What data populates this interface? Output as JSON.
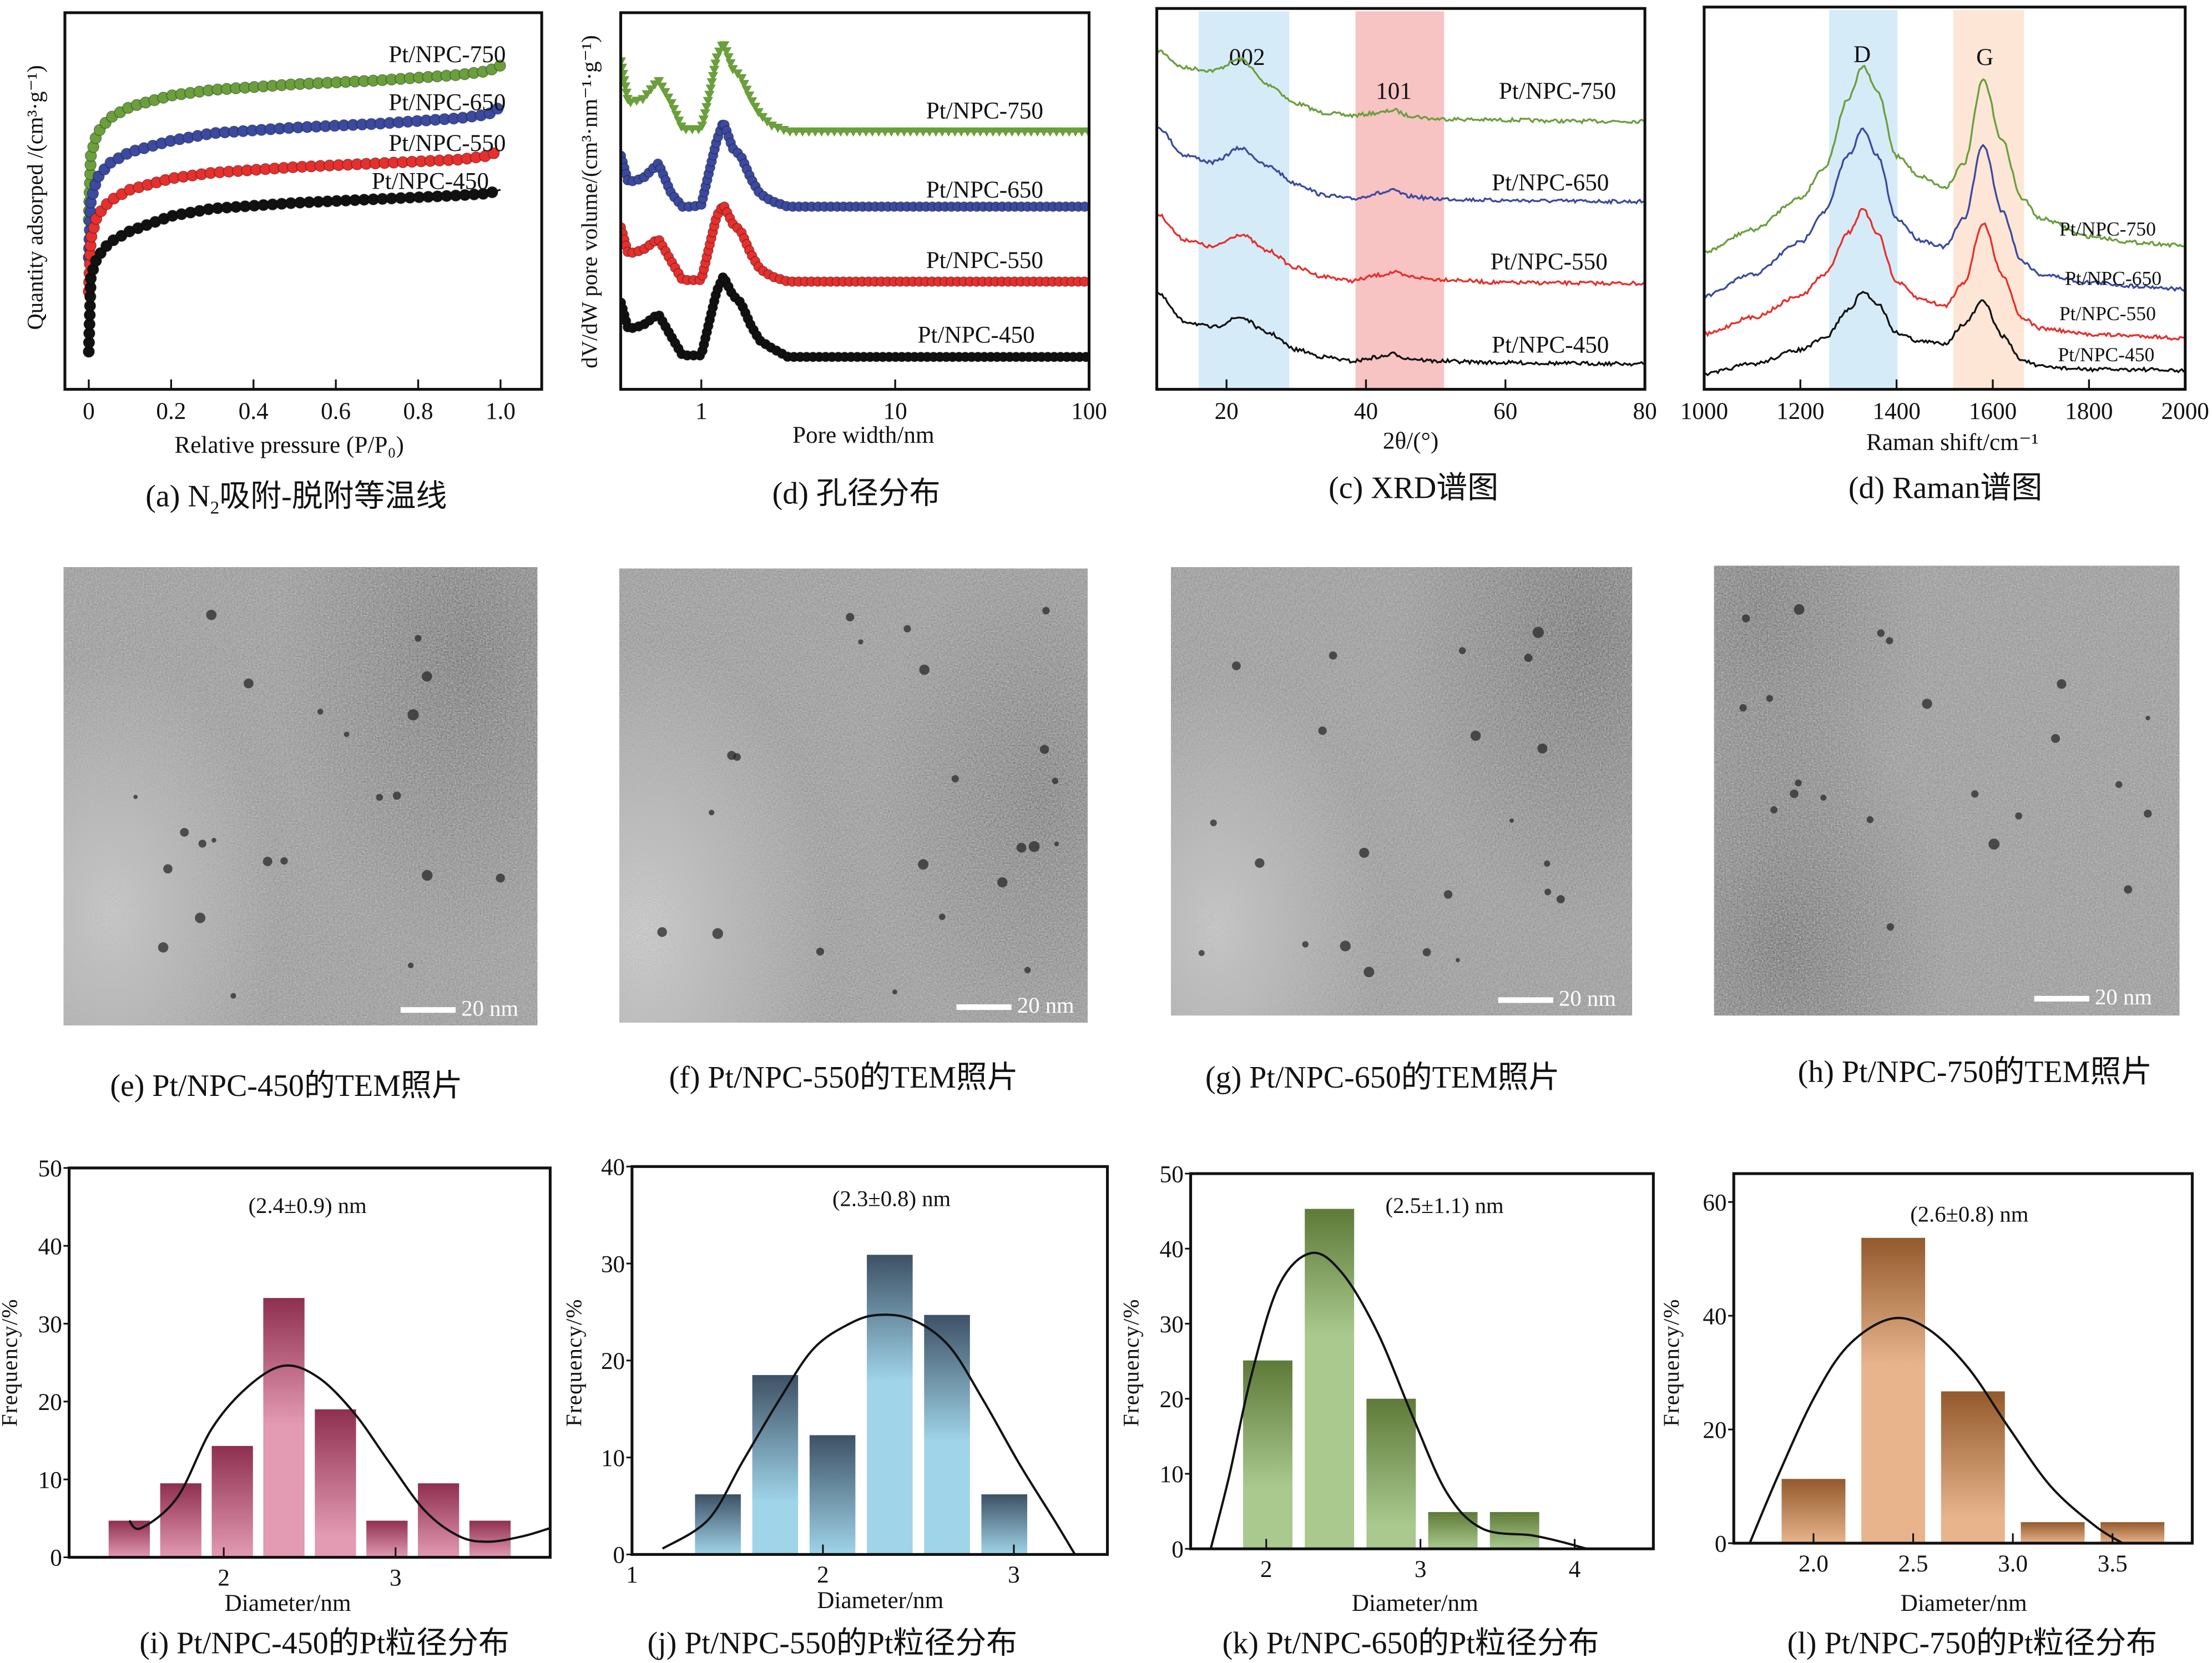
{
  "chart_data": [
    {
      "id": "a",
      "type": "line",
      "caption_pre": "(a) N",
      "caption_sub": "2",
      "caption_post": "吸附-脱附等温线",
      "xlabel": "Relative pressure (P/P₀)",
      "ylabel": "Quantity adsorped /(cm³·g⁻¹)",
      "xlim": [
        -0.058,
        1.1
      ],
      "ylim": [
        0,
        100
      ],
      "log_x": false,
      "xticks": [
        0,
        0.2,
        0.4,
        0.6,
        0.8,
        1.0
      ],
      "xtick_labels": [
        "0",
        "0.2",
        "0.4",
        "0.6",
        "0.8",
        "1.0"
      ],
      "x": [
        0,
        0.005,
        0.02,
        0.05,
        0.1,
        0.2,
        0.3,
        0.5,
        0.7,
        0.9,
        0.97,
        1.0
      ],
      "series": [
        {
          "name": "Pt/NPC-750",
          "color": "#6a9f3c",
          "marker": "circle",
          "y": [
            45,
            62,
            68,
            72,
            75,
            78,
            79.5,
            81,
            82,
            83.5,
            84.5,
            86
          ]
        },
        {
          "name": "Pt/NPC-650",
          "color": "#3b4a9e",
          "marker": "circle",
          "y": [
            35,
            50,
            56,
            60,
            63,
            66,
            68,
            69.5,
            70.5,
            72,
            73,
            75
          ]
        },
        {
          "name": "Pt/NPC-550",
          "color": "#e5302e",
          "marker": "circle",
          "y": [
            26,
            40,
            46,
            50,
            53,
            56,
            57.5,
            59,
            60,
            61,
            62,
            63.5
          ]
        },
        {
          "name": "Pt/NPC-450",
          "color": "#111111",
          "marker": "circle",
          "y": [
            10,
            30,
            35,
            39,
            42,
            46,
            48,
            49.5,
            50.5,
            51.5,
            52,
            53
          ]
        }
      ]
    },
    {
      "id": "b",
      "type": "line",
      "caption": "(d) 孔径分布",
      "xlabel": "Pore width/nm",
      "ylabel": "dV/dW pore volume/(cm³·nm⁻¹·g⁻¹)",
      "xlim": [
        0.384,
        100
      ],
      "ylim": [
        0,
        100
      ],
      "log_x": true,
      "xticks": [
        1,
        10,
        100
      ],
      "xtick_labels": [
        "1",
        "10",
        "100"
      ],
      "x": [
        0.385,
        0.42,
        0.5,
        0.6,
        0.7,
        0.8,
        0.9,
        1.0,
        1.1,
        1.2,
        1.3,
        1.45,
        1.6,
        1.8,
        2.0,
        2.3,
        2.8,
        3.5,
        5,
        10,
        100
      ],
      "series": [
        {
          "name": "Pt/NPC-750",
          "color": "#6a9f3c",
          "marker": "triangle-down",
          "y": [
            87,
            76,
            77,
            82,
            76,
            69,
            69,
            69,
            78,
            88,
            92,
            85,
            83,
            77,
            73,
            70,
            68.4,
            68.4,
            68.4,
            68.4,
            68.4
          ]
        },
        {
          "name": "Pt/NPC-650",
          "color": "#3b4a9e",
          "marker": "pentagon",
          "y": [
            62,
            55,
            56,
            60,
            52,
            48.5,
            48.5,
            49,
            58,
            66,
            71,
            64,
            62,
            56,
            52,
            50,
            48.5,
            48.5,
            48.5,
            48.5,
            48.5
          ]
        },
        {
          "name": "Pt/NPC-550",
          "color": "#e5302e",
          "marker": "circle",
          "y": [
            43,
            36,
            37,
            40,
            34,
            29,
            29,
            29,
            38,
            46,
            49,
            44,
            42,
            36,
            32,
            30,
            28.6,
            28.6,
            28.6,
            28.6,
            28.6
          ]
        },
        {
          "name": "Pt/NPC-450",
          "color": "#111111",
          "marker": "hexagon",
          "y": [
            23,
            16,
            17,
            20,
            14,
            9,
            9,
            9,
            18,
            26,
            30,
            25,
            23,
            17,
            13,
            11,
            8.6,
            8.6,
            8.6,
            8.6,
            8.6
          ]
        }
      ]
    },
    {
      "id": "c",
      "type": "line",
      "caption": "(c) XRD谱图",
      "xlabel": "2θ/(°)",
      "ylabel": "",
      "xlim": [
        10,
        80
      ],
      "ylim": [
        0,
        100
      ],
      "log_x": false,
      "xticks": [
        20,
        40,
        60,
        80
      ],
      "xtick_labels": [
        "20",
        "40",
        "60",
        "80"
      ],
      "bands": [
        {
          "from": 16,
          "to": 29,
          "color": "#d6ebf8",
          "label": "002"
        },
        {
          "from": 38.5,
          "to": 51.2,
          "color": "#f8c3c3",
          "label": "101"
        }
      ],
      "x": [
        10,
        14,
        18,
        22,
        26,
        30,
        34,
        38,
        42,
        44,
        46,
        50,
        60,
        70,
        80
      ],
      "series": [
        {
          "name": "Pt/NPC-750",
          "color": "#6a9f3c",
          "y": [
            89,
            84.4,
            83.7,
            86.7,
            80,
            75,
            72.6,
            71.9,
            72.6,
            73.3,
            71.9,
            71,
            70.7,
            70.4,
            70.4
          ]
        },
        {
          "name": "Pt/NPC-650",
          "color": "#3b4a9e",
          "y": [
            69,
            61.5,
            59.6,
            63.3,
            58.5,
            54,
            51,
            50,
            51.5,
            52.2,
            50.7,
            50,
            49.6,
            49.4,
            49.3
          ]
        },
        {
          "name": "Pt/NPC-550",
          "color": "#e5302e",
          "y": [
            46,
            39.3,
            37.4,
            40.7,
            36.3,
            31.9,
            29.6,
            28.5,
            30,
            30.7,
            29.6,
            28.9,
            28,
            27.9,
            27.8
          ]
        },
        {
          "name": "Pt/NPC-450",
          "color": "#111111",
          "y": [
            25.2,
            17.8,
            16.3,
            18.9,
            14.8,
            10.4,
            8.5,
            7.4,
            8.5,
            9.3,
            8.1,
            7.4,
            7,
            6.8,
            6.7
          ]
        }
      ]
    },
    {
      "id": "d",
      "type": "line",
      "caption": "(d) Raman谱图",
      "xlabel": "Raman shift/cm⁻¹",
      "ylabel": "",
      "xlim": [
        1000,
        2000
      ],
      "ylim": [
        0,
        100
      ],
      "log_x": false,
      "xticks": [
        1000,
        1200,
        1400,
        1600,
        1800,
        2000
      ],
      "xtick_labels": [
        "1000",
        "1200",
        "1400",
        "1600",
        "1800",
        "2000"
      ],
      "bands": [
        {
          "from": 1260,
          "to": 1402,
          "color": "#d6ebf8",
          "label": "D"
        },
        {
          "from": 1518,
          "to": 1665,
          "color": "#fde6d6",
          "label": "G"
        }
      ],
      "x": [
        1000,
        1100,
        1200,
        1250,
        1300,
        1330,
        1360,
        1400,
        1450,
        1500,
        1540,
        1580,
        1620,
        1660,
        1700,
        1800,
        1900,
        2000
      ],
      "series": [
        {
          "name": "Pt/NPC-750",
          "color": "#6a9f3c",
          "y": [
            36,
            41.7,
            50,
            58,
            76,
            84.5,
            78,
            61,
            55.7,
            52.8,
            59,
            81,
            65,
            50,
            44.6,
            40,
            38.4,
            37.6
          ]
        },
        {
          "name": "Pt/NPC-650",
          "color": "#3b4a9e",
          "y": [
            24.4,
            30,
            38.4,
            46.5,
            61.3,
            68,
            61,
            44.6,
            39,
            37.3,
            44.6,
            64,
            46.5,
            33.6,
            30,
            28,
            27,
            26.2
          ]
        },
        {
          "name": "Pt/NPC-550",
          "color": "#e5302e",
          "y": [
            14.4,
            18.8,
            24.4,
            30,
            41,
            47,
            41,
            28,
            23.6,
            21.8,
            28,
            43.5,
            30,
            18.8,
            15.9,
            14.4,
            14,
            13.3
          ]
        },
        {
          "name": "Pt/NPC-450",
          "color": "#111111",
          "y": [
            4,
            6.6,
            10.3,
            13.3,
            20.7,
            25.5,
            22.5,
            14.8,
            12.5,
            12,
            17,
            23,
            14,
            7.7,
            5.9,
            5.2,
            5.2,
            4.8
          ]
        }
      ]
    },
    {
      "id": "i",
      "type": "bar",
      "caption": "(i) Pt/NPC-450的Pt粒径分布",
      "xlabel": "Diameter/nm",
      "ylabel": "Frequency/%",
      "annotation": "(2.4±0.9) nm",
      "xlim": [
        1.1,
        3.9
      ],
      "ylim": [
        0,
        50
      ],
      "xticks": [
        2,
        3
      ],
      "xtick_labels": [
        "2",
        "3"
      ],
      "yticks": [
        0,
        10,
        20,
        30,
        40,
        50
      ],
      "ytick_labels": [
        "0",
        "10",
        "20",
        "30",
        "40",
        "50"
      ],
      "bin_width": 0.24,
      "x": [
        1.45,
        1.75,
        2.05,
        2.35,
        2.65,
        2.95,
        3.25,
        3.55
      ],
      "values": [
        4.7,
        9.5,
        14.3,
        33.3,
        19,
        4.7,
        9.5,
        4.7
      ],
      "bar_colors": [
        "#8f2f50",
        "#e39ab3"
      ],
      "fit": {
        "x": [
          1.45,
          1.52,
          1.73,
          1.93,
          2.14,
          2.35,
          2.55,
          2.76,
          2.96,
          3.17,
          3.37,
          3.54,
          3.74,
          3.9
        ],
        "y": [
          4.7,
          3.75,
          7.7,
          16.5,
          21.9,
          24.6,
          23.1,
          18.5,
          12.3,
          6,
          2.7,
          2.0,
          2.7,
          3.75
        ]
      }
    },
    {
      "id": "j",
      "type": "bar",
      "caption": "(j) Pt/NPC-550的Pt粒径分布",
      "xlabel": "Diameter/nm",
      "ylabel": "Frequency/%",
      "annotation": "(2.3±0.8) nm",
      "xlim": [
        1,
        3.49
      ],
      "ylim": [
        0,
        40
      ],
      "xticks": [
        1,
        2,
        3
      ],
      "xtick_labels": [
        "1",
        "2",
        "3"
      ],
      "yticks": [
        0,
        10,
        20,
        30,
        40
      ],
      "ytick_labels": [
        "0",
        "10",
        "20",
        "30",
        "40"
      ],
      "bin_width": 0.24,
      "x": [
        1.45,
        1.75,
        2.05,
        2.35,
        2.65,
        2.95
      ],
      "values": [
        6.2,
        18.5,
        12.3,
        30.9,
        24.7,
        6.2
      ],
      "bar_colors": [
        "#3e5165",
        "#9fd4e9"
      ],
      "fit": {
        "x": [
          1.16,
          1.4,
          1.58,
          1.77,
          1.95,
          2.14,
          2.29,
          2.47,
          2.66,
          2.84,
          3.03,
          3.21,
          3.32
        ],
        "y": [
          0.6,
          3.6,
          9.6,
          15.9,
          21.2,
          23.8,
          24.7,
          24.2,
          21.5,
          15.9,
          9.3,
          3.6,
          0
        ]
      }
    },
    {
      "id": "k",
      "type": "bar",
      "caption": "(k) Pt/NPC-650的Pt粒径分布",
      "xlabel": "Diameter/nm",
      "ylabel": "Frequency/%",
      "annotation": "(2.5±1.1) nm",
      "xlim": [
        1.51,
        4.51
      ],
      "ylim": [
        0,
        50
      ],
      "xticks": [
        2,
        3,
        4
      ],
      "xtick_labels": [
        "2",
        "3",
        "4"
      ],
      "yticks": [
        0,
        10,
        20,
        30,
        40,
        50
      ],
      "ytick_labels": [
        "0",
        "10",
        "20",
        "30",
        "40",
        "50"
      ],
      "bin_width": 0.32,
      "x": [
        2.01,
        2.41,
        2.81,
        3.21,
        3.61
      ],
      "values": [
        25.1,
        45.3,
        20,
        4.9,
        4.9
      ],
      "bar_colors": [
        "#5e7a38",
        "#a9c98e"
      ],
      "fit": {
        "x": [
          1.64,
          1.76,
          1.9,
          2.08,
          2.29,
          2.49,
          2.72,
          2.95,
          3.17,
          3.4,
          3.72,
          3.9,
          4.08
        ],
        "y": [
          0,
          9.7,
          22.8,
          35,
          39.4,
          36.8,
          28.9,
          17.6,
          7.5,
          2.7,
          1.8,
          1,
          0
        ]
      }
    },
    {
      "id": "l",
      "type": "bar",
      "caption": "(l) Pt/NPC-750的Pt粒径分布",
      "xlabel": "Diameter/nm",
      "ylabel": "Frequency/%",
      "annotation": "(2.6±0.8) nm",
      "xlim": [
        1.6,
        3.9
      ],
      "ylim": [
        0,
        65
      ],
      "xticks": [
        2.0,
        2.5,
        3.0,
        3.5
      ],
      "xtick_labels": [
        "2.0",
        "2.5",
        "3.0",
        "3.5"
      ],
      "yticks": [
        0,
        20,
        40,
        60
      ],
      "ytick_labels": [
        "0",
        "20",
        "40",
        "60"
      ],
      "bin_width": 0.32,
      "x": [
        2.0,
        2.4,
        2.8,
        3.2,
        3.6
      ],
      "values": [
        11.3,
        53.7,
        26.7,
        3.7,
        3.7
      ],
      "bar_colors": [
        "#935a2c",
        "#e8b48c"
      ],
      "fit": {
        "x": [
          1.68,
          1.82,
          2.0,
          2.17,
          2.38,
          2.56,
          2.77,
          2.98,
          3.19,
          3.41,
          3.55
        ],
        "y": [
          0,
          11.7,
          25.4,
          34.6,
          39.4,
          38,
          31.1,
          20.3,
          10,
          3.1,
          0
        ]
      }
    }
  ],
  "tem": [
    {
      "caption": "(e) Pt/NPC-450的TEM照片",
      "scalebar": "20 nm"
    },
    {
      "caption": "(f) Pt/NPC-550的TEM照片",
      "scalebar": "20 nm"
    },
    {
      "caption": "(g) Pt/NPC-650的TEM照片",
      "scalebar": "20 nm"
    },
    {
      "caption": "(h) Pt/NPC-750的TEM照片",
      "scalebar": "20 nm"
    }
  ]
}
